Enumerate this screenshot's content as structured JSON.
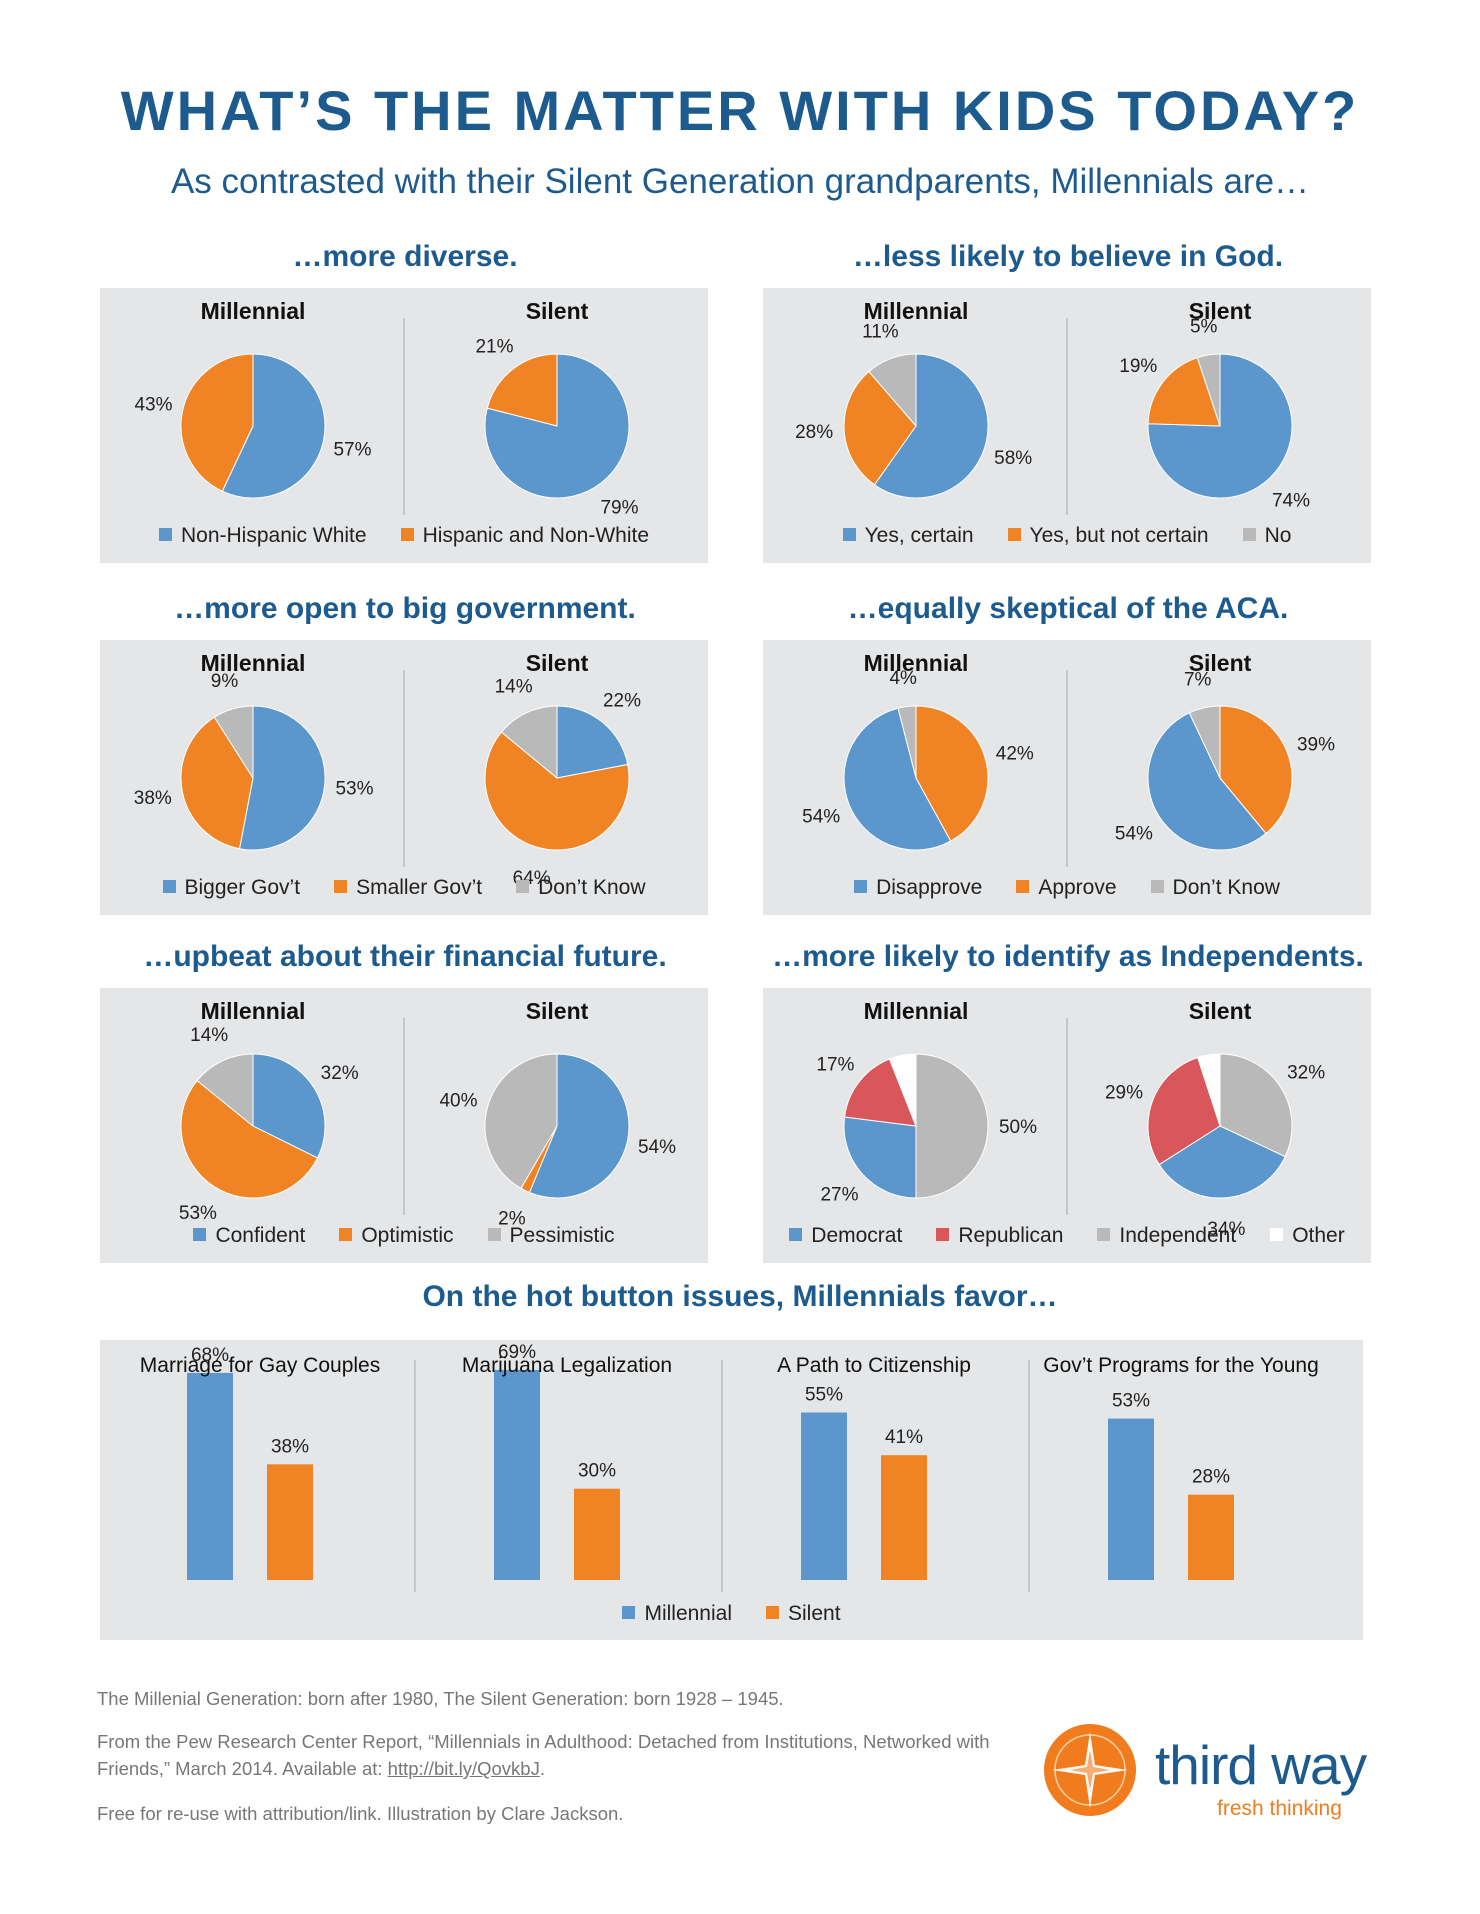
{
  "title": "WHAT’S THE MATTER WITH KIDS TODAY?",
  "subtitle": "As contrasted with their Silent Generation grandparents, Millennials are…",
  "colors": {
    "blue": "#5b96cc",
    "orange": "#f08425",
    "gray": "#b9b9b9",
    "red": "#d9575a",
    "white": "#ffffff",
    "heading": "#1d5a8e",
    "panel": "#e5e6e8"
  },
  "chart_data": [
    {
      "type": "pie",
      "title": "…more diverse.",
      "legend": [
        {
          "label": "Non-Hispanic White",
          "color": "#5b96cc"
        },
        {
          "label": "Hispanic and Non-White",
          "color": "#f08425"
        }
      ],
      "pies": [
        {
          "name": "Millennial",
          "slices": [
            {
              "category": "Non-Hispanic White",
              "value": 57,
              "label": "57%",
              "color": "#5b96cc"
            },
            {
              "category": "Hispanic and Non-White",
              "value": 43,
              "label": "43%",
              "color": "#f08425"
            }
          ]
        },
        {
          "name": "Silent",
          "slices": [
            {
              "category": "Non-Hispanic White",
              "value": 79,
              "label": "79%",
              "color": "#5b96cc"
            },
            {
              "category": "Hispanic and Non-White",
              "value": 21,
              "label": "21%",
              "color": "#f08425"
            }
          ]
        }
      ]
    },
    {
      "type": "pie",
      "title": "…less likely to believe in God.",
      "legend": [
        {
          "label": "Yes, certain",
          "color": "#5b96cc"
        },
        {
          "label": "Yes, but not certain",
          "color": "#f08425"
        },
        {
          "label": "No",
          "color": "#b9b9b9"
        }
      ],
      "pies": [
        {
          "name": "Millennial",
          "slices": [
            {
              "category": "Yes, certain",
              "value": 58,
              "label": "58%",
              "color": "#5b96cc"
            },
            {
              "category": "Yes, but not certain",
              "value": 28,
              "label": "28%",
              "color": "#f08425"
            },
            {
              "category": "No",
              "value": 11,
              "label": "11%",
              "color": "#b9b9b9"
            }
          ]
        },
        {
          "name": "Silent",
          "slices": [
            {
              "category": "Yes, certain",
              "value": 74,
              "label": "74%",
              "color": "#5b96cc"
            },
            {
              "category": "Yes, but not certain",
              "value": 19,
              "label": "19%",
              "color": "#f08425"
            },
            {
              "category": "No",
              "value": 5,
              "label": "5%",
              "color": "#b9b9b9"
            }
          ]
        }
      ]
    },
    {
      "type": "pie",
      "title": "…more open to big government.",
      "legend": [
        {
          "label": "Bigger Gov’t",
          "color": "#5b96cc"
        },
        {
          "label": "Smaller Gov’t",
          "color": "#f08425"
        },
        {
          "label": "Don’t Know",
          "color": "#b9b9b9"
        }
      ],
      "pies": [
        {
          "name": "Millennial",
          "slices": [
            {
              "category": "Bigger Gov’t",
              "value": 53,
              "label": "53%",
              "color": "#5b96cc"
            },
            {
              "category": "Smaller Gov’t",
              "value": 38,
              "label": "38%",
              "color": "#f08425"
            },
            {
              "category": "Don’t Know",
              "value": 9,
              "label": "9%",
              "color": "#b9b9b9"
            }
          ]
        },
        {
          "name": "Silent",
          "slices": [
            {
              "category": "Bigger Gov’t",
              "value": 22,
              "label": "22%",
              "color": "#5b96cc"
            },
            {
              "category": "Smaller Gov’t",
              "value": 64,
              "label": "64%",
              "color": "#f08425"
            },
            {
              "category": "Don’t Know",
              "value": 14,
              "label": "14%",
              "color": "#b9b9b9"
            }
          ]
        }
      ]
    },
    {
      "type": "pie",
      "title": "…equally skeptical of the ACA.",
      "legend": [
        {
          "label": "Disapprove",
          "color": "#5b96cc"
        },
        {
          "label": "Approve",
          "color": "#f08425"
        },
        {
          "label": "Don’t Know",
          "color": "#b9b9b9"
        }
      ],
      "pies": [
        {
          "name": "Millennial",
          "slices": [
            {
              "category": "Approve",
              "value": 42,
              "label": "42%",
              "color": "#f08425"
            },
            {
              "category": "Disapprove",
              "value": 54,
              "label": "54%",
              "color": "#5b96cc"
            },
            {
              "category": "Don’t Know",
              "value": 4,
              "label": "4%",
              "color": "#b9b9b9"
            }
          ]
        },
        {
          "name": "Silent",
          "slices": [
            {
              "category": "Approve",
              "value": 39,
              "label": "39%",
              "color": "#f08425"
            },
            {
              "category": "Disapprove",
              "value": 54,
              "label": "54%",
              "color": "#5b96cc"
            },
            {
              "category": "Don’t Know",
              "value": 7,
              "label": "7%",
              "color": "#b9b9b9"
            }
          ]
        }
      ]
    },
    {
      "type": "pie",
      "title": "…upbeat about their financial future.",
      "legend": [
        {
          "label": "Confident",
          "color": "#5b96cc"
        },
        {
          "label": "Optimistic",
          "color": "#f08425"
        },
        {
          "label": "Pessimistic",
          "color": "#b9b9b9"
        }
      ],
      "pies": [
        {
          "name": "Millennial",
          "slices": [
            {
              "category": "Confident",
              "value": 32,
              "label": "32%",
              "color": "#5b96cc"
            },
            {
              "category": "Optimistic",
              "value": 53,
              "label": "53%",
              "color": "#f08425"
            },
            {
              "category": "Pessimistic",
              "value": 14,
              "label": "14%",
              "color": "#b9b9b9"
            }
          ]
        },
        {
          "name": "Silent",
          "slices": [
            {
              "category": "Confident",
              "value": 54,
              "label": "54%",
              "color": "#5b96cc"
            },
            {
              "category": "Optimistic",
              "value": 2,
              "label": "2%",
              "color": "#f08425"
            },
            {
              "category": "Pessimistic",
              "value": 40,
              "label": "40%",
              "color": "#b9b9b9"
            }
          ]
        }
      ]
    },
    {
      "type": "pie",
      "title": "…more likely to identify as Independents.",
      "legend": [
        {
          "label": "Democrat",
          "color": "#5b96cc"
        },
        {
          "label": "Republican",
          "color": "#d9575a"
        },
        {
          "label": "Independent",
          "color": "#b9b9b9"
        },
        {
          "label": "Other",
          "color": "#ffffff"
        }
      ],
      "pies": [
        {
          "name": "Millennial",
          "slices": [
            {
              "category": "Independent",
              "value": 50,
              "label": "50%",
              "color": "#b9b9b9"
            },
            {
              "category": "Democrat",
              "value": 27,
              "label": "27%",
              "color": "#5b96cc"
            },
            {
              "category": "Republican",
              "value": 17,
              "label": "17%",
              "color": "#d9575a"
            },
            {
              "category": "Other",
              "value": 6,
              "label": "",
              "color": "#ffffff"
            }
          ]
        },
        {
          "name": "Silent",
          "slices": [
            {
              "category": "Independent",
              "value": 32,
              "label": "32%",
              "color": "#b9b9b9"
            },
            {
              "category": "Democrat",
              "value": 34,
              "label": "34%",
              "color": "#5b96cc"
            },
            {
              "category": "Republican",
              "value": 29,
              "label": "29%",
              "color": "#d9575a"
            },
            {
              "category": "Other",
              "value": 5,
              "label": "",
              "color": "#ffffff"
            }
          ]
        }
      ]
    },
    {
      "type": "bar",
      "title": "On the hot button issues, Millennials favor…",
      "categories": [
        "Marriage for Gay Couples",
        "Marijuana Legalization",
        "A Path to Citizenship",
        "Gov’t Programs for the Young"
      ],
      "series": [
        {
          "name": "Millennial",
          "color": "#5b96cc",
          "values": [
            68,
            69,
            55,
            53
          ],
          "labels": [
            "68%",
            "69%",
            "55%",
            "53%"
          ]
        },
        {
          "name": "Silent",
          "color": "#f08425",
          "values": [
            38,
            30,
            41,
            28
          ],
          "labels": [
            "38%",
            "30%",
            "41%",
            "28%"
          ]
        }
      ],
      "ylim": [
        0,
        100
      ]
    }
  ],
  "footer": {
    "line1": "The Millenial Generation: born after 1980, The Silent Generation: born 1928 – 1945.",
    "line2": "From the Pew Research Center Report, “Millennials in Adulthood: Detached from Institutions, Networked with Friends,” March 2014. Available at:",
    "link": "http://bit.ly/QovkbJ",
    "link_end": ".",
    "line3": "Free for re-use with attribution/link. Illustration by Clare Jackson."
  },
  "logo": {
    "brand": "third way",
    "tagline": "fresh thinking"
  }
}
